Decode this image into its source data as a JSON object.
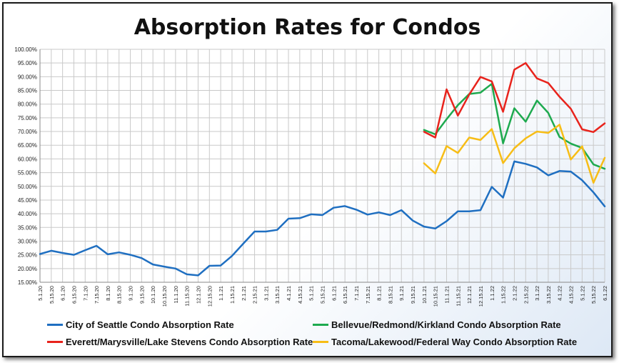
{
  "chart_data": {
    "type": "line",
    "title": "Absorption Rates for Condos",
    "xlabel": "",
    "ylabel": "",
    "ylim": [
      15,
      100
    ],
    "yticks": [
      15,
      20,
      25,
      30,
      35,
      40,
      45,
      50,
      55,
      60,
      65,
      70,
      75,
      80,
      85,
      90,
      95,
      100
    ],
    "ytick_labels": [
      "15.00%",
      "20.00%",
      "25.00%",
      "30.00%",
      "35.00%",
      "40.00%",
      "45.00%",
      "50.00%",
      "55.00%",
      "60.00%",
      "65.00%",
      "70.00%",
      "75.00%",
      "80.00%",
      "85.00%",
      "90.00%",
      "95.00%",
      "100.00%"
    ],
    "grid": true,
    "legend_position": "bottom",
    "categories": [
      "5.1.20",
      "5.15.20",
      "6.1.20",
      "6.15.20",
      "7.1.20",
      "7.15.20",
      "8.1.20",
      "8.15.20",
      "9.1.20",
      "9.15.20",
      "10.1.20",
      "10.15.20",
      "11.1.20",
      "11.15.20",
      "12.1.20",
      "12.15.20",
      "1.1.21",
      "1.15.21",
      "2.1.21",
      "2.15.21",
      "3.1.21",
      "3.15.21",
      "4.1.21",
      "4.15.21",
      "5.1.21",
      "5.15.21",
      "6.1.21",
      "6.15.21",
      "7.1.21",
      "7.15.21",
      "8.1.21",
      "8.15.21",
      "9.1.21",
      "9.15.21",
      "10.1.21",
      "10.15.21",
      "11.1.21",
      "11.15.21",
      "12.1.21",
      "12.15.21",
      "1.1.22",
      "1.15.22",
      "2.1.22",
      "2.15.22",
      "3.1.22",
      "3.15.22",
      "4.1.22",
      "4.15.22",
      "5.1.22",
      "5.15.22",
      "6.1.22"
    ],
    "series": [
      {
        "name": "City of Seattle Condo Absorption Rate",
        "color": "#1f6fc1",
        "values": [
          25.3,
          26.5,
          25.7,
          25.0,
          26.7,
          28.3,
          25.2,
          25.9,
          25.0,
          23.8,
          21.5,
          20.7,
          20.0,
          17.9,
          17.5,
          21.0,
          21.1,
          24.6,
          29.1,
          33.5,
          33.5,
          34.1,
          38.2,
          38.4,
          39.8,
          39.5,
          42.2,
          42.8,
          41.5,
          39.7,
          40.5,
          39.5,
          41.3,
          37.5,
          35.3,
          34.6,
          37.3,
          40.9,
          40.9,
          41.3,
          49.8,
          45.9,
          59.1,
          58.2,
          56.9,
          54.0,
          55.6,
          55.4,
          52.2,
          47.8,
          42.7
        ]
      },
      {
        "name": "Bellevue/Redmond/Kirkland Condo Absorption Rate",
        "color": "#1eaa4f",
        "values": [
          null,
          null,
          null,
          null,
          null,
          null,
          null,
          null,
          null,
          null,
          null,
          null,
          null,
          null,
          null,
          null,
          null,
          null,
          null,
          null,
          null,
          null,
          null,
          null,
          null,
          null,
          null,
          null,
          null,
          null,
          null,
          null,
          null,
          null,
          70.6,
          69.0,
          74.5,
          79.6,
          83.7,
          84.2,
          87.4,
          65.7,
          78.5,
          73.6,
          81.3,
          76.8,
          68.0,
          65.6,
          64.0,
          58.0,
          56.4
        ]
      },
      {
        "name": "Everett/Marysville/Lake Stevens Condo Absorption Rate",
        "color": "#e8231c",
        "values": [
          null,
          null,
          null,
          null,
          null,
          null,
          null,
          null,
          null,
          null,
          null,
          null,
          null,
          null,
          null,
          null,
          null,
          null,
          null,
          null,
          null,
          null,
          null,
          null,
          null,
          null,
          null,
          null,
          null,
          null,
          null,
          null,
          null,
          null,
          69.9,
          67.8,
          85.4,
          75.8,
          83.5,
          89.9,
          88.3,
          77.2,
          92.6,
          95.0,
          89.4,
          87.7,
          82.7,
          78.3,
          70.8,
          69.8,
          73.0
        ]
      },
      {
        "name": "Tacoma/Lakewood/Federal Way Condo Absorption Rate",
        "color": "#f7bd16",
        "values": [
          null,
          null,
          null,
          null,
          null,
          null,
          null,
          null,
          null,
          null,
          null,
          null,
          null,
          null,
          null,
          null,
          null,
          null,
          null,
          null,
          null,
          null,
          null,
          null,
          null,
          null,
          null,
          null,
          null,
          null,
          null,
          null,
          null,
          null,
          58.4,
          54.7,
          64.7,
          62.2,
          67.8,
          66.9,
          70.9,
          58.5,
          63.9,
          67.5,
          70.0,
          69.5,
          72.5,
          59.8,
          64.6,
          51.3,
          60.4
        ]
      }
    ]
  }
}
